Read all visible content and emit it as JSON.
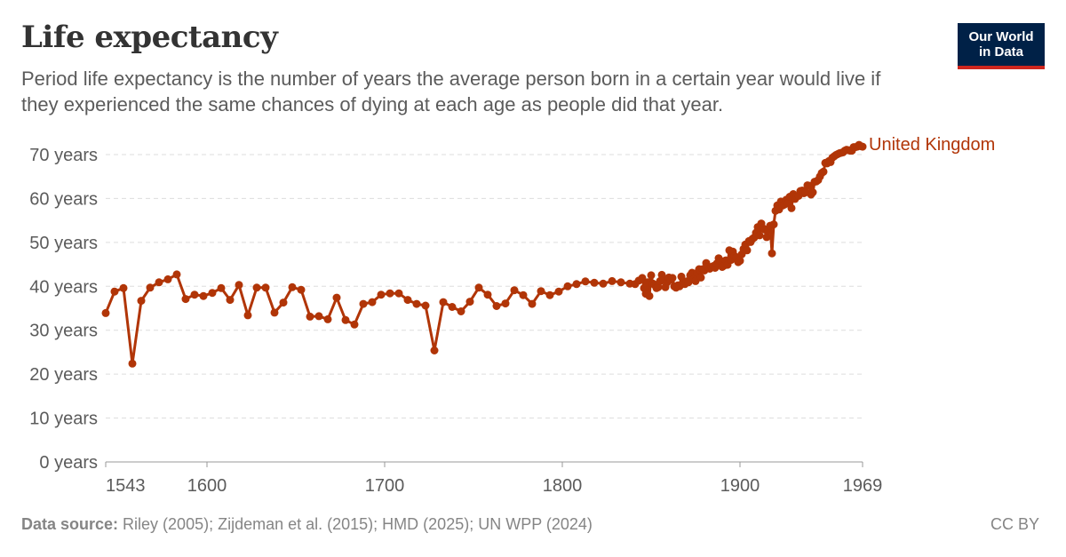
{
  "header": {
    "title": "Life expectancy",
    "subtitle": "Period life expectancy is the number of years the average person born in a certain year would live if they experienced the same chances of dying at each age as people did that year.",
    "logo_line1": "Our World",
    "logo_line2": "in Data"
  },
  "footer": {
    "source_label": "Data source:",
    "source_text": " Riley (2005); Zijdeman et al. (2015); HMD (2025); UN WPP (2024)",
    "license": "CC BY"
  },
  "colors": {
    "series": "#b13507",
    "grid": "#dddddd",
    "text": "#5b5b5b"
  },
  "chart_data": {
    "type": "line",
    "title": "Life expectancy",
    "xlim": [
      1543,
      1969
    ],
    "ylim": [
      0,
      70
    ],
    "yticks": [
      0,
      10,
      20,
      30,
      40,
      50,
      60,
      70
    ],
    "ytick_labels": [
      "0 years",
      "10 years",
      "20 years",
      "30 years",
      "40 years",
      "50 years",
      "60 years",
      "70 years"
    ],
    "xticks": [
      1543,
      1600,
      1700,
      1800,
      1900,
      1969
    ],
    "xtick_labels": [
      "1543",
      "1600",
      "1700",
      "1800",
      "1900",
      "1969"
    ],
    "grid": "horizontal dashed",
    "series": [
      {
        "name": "United Kingdom",
        "color": "#b13507",
        "points": [
          [
            1543,
            33.9
          ],
          [
            1548,
            38.8
          ],
          [
            1553,
            39.6
          ],
          [
            1558,
            22.4
          ],
          [
            1563,
            36.7
          ],
          [
            1568,
            39.7
          ],
          [
            1573,
            40.9
          ],
          [
            1578,
            41.6
          ],
          [
            1583,
            42.7
          ],
          [
            1588,
            37.1
          ],
          [
            1593,
            38.1
          ],
          [
            1598,
            37.8
          ],
          [
            1603,
            38.5
          ],
          [
            1608,
            39.6
          ],
          [
            1613,
            36.9
          ],
          [
            1618,
            40.3
          ],
          [
            1623,
            33.4
          ],
          [
            1628,
            39.7
          ],
          [
            1633,
            39.7
          ],
          [
            1638,
            34.0
          ],
          [
            1643,
            36.3
          ],
          [
            1648,
            39.8
          ],
          [
            1653,
            39.2
          ],
          [
            1658,
            33.1
          ],
          [
            1663,
            33.2
          ],
          [
            1668,
            32.5
          ],
          [
            1673,
            37.4
          ],
          [
            1678,
            32.3
          ],
          [
            1683,
            31.3
          ],
          [
            1688,
            36.0
          ],
          [
            1693,
            36.4
          ],
          [
            1698,
            38.1
          ],
          [
            1703,
            38.4
          ],
          [
            1708,
            38.4
          ],
          [
            1713,
            36.9
          ],
          [
            1718,
            36.0
          ],
          [
            1723,
            35.6
          ],
          [
            1728,
            25.4
          ],
          [
            1733,
            36.4
          ],
          [
            1738,
            35.3
          ],
          [
            1743,
            34.3
          ],
          [
            1748,
            36.5
          ],
          [
            1753,
            39.7
          ],
          [
            1758,
            38.1
          ],
          [
            1763,
            35.5
          ],
          [
            1768,
            36.1
          ],
          [
            1773,
            39.1
          ],
          [
            1778,
            38.0
          ],
          [
            1783,
            36.0
          ],
          [
            1788,
            38.9
          ],
          [
            1793,
            38.0
          ],
          [
            1798,
            38.8
          ],
          [
            1803,
            40.0
          ],
          [
            1808,
            40.5
          ],
          [
            1813,
            41.1
          ],
          [
            1818,
            40.8
          ],
          [
            1823,
            40.6
          ],
          [
            1828,
            41.2
          ],
          [
            1833,
            40.9
          ],
          [
            1838,
            40.6
          ],
          [
            1841,
            40.5
          ],
          [
            1843,
            41.3
          ],
          [
            1845,
            41.9
          ],
          [
            1846,
            39.6
          ],
          [
            1847,
            38.3
          ],
          [
            1848,
            40.9
          ],
          [
            1849,
            37.8
          ],
          [
            1850,
            42.5
          ],
          [
            1851,
            40.6
          ],
          [
            1852,
            40.3
          ],
          [
            1853,
            39.6
          ],
          [
            1854,
            39.8
          ],
          [
            1855,
            41.2
          ],
          [
            1856,
            42.6
          ],
          [
            1857,
            41.4
          ],
          [
            1858,
            39.8
          ],
          [
            1859,
            40.9
          ],
          [
            1860,
            42.0
          ],
          [
            1861,
            41.5
          ],
          [
            1862,
            41.9
          ],
          [
            1863,
            40.0
          ],
          [
            1864,
            39.7
          ],
          [
            1865,
            40.2
          ],
          [
            1866,
            40.0
          ],
          [
            1867,
            42.2
          ],
          [
            1868,
            41.0
          ],
          [
            1869,
            40.5
          ],
          [
            1870,
            41.1
          ],
          [
            1871,
            40.9
          ],
          [
            1872,
            42.5
          ],
          [
            1873,
            43.1
          ],
          [
            1874,
            41.6
          ],
          [
            1875,
            41.2
          ],
          [
            1876,
            43.1
          ],
          [
            1877,
            43.9
          ],
          [
            1878,
            42.0
          ],
          [
            1879,
            43.9
          ],
          [
            1880,
            43.6
          ],
          [
            1881,
            45.3
          ],
          [
            1882,
            44.4
          ],
          [
            1883,
            44.0
          ],
          [
            1884,
            44.4
          ],
          [
            1885,
            44.6
          ],
          [
            1886,
            44.2
          ],
          [
            1887,
            45.2
          ],
          [
            1888,
            46.4
          ],
          [
            1889,
            45.8
          ],
          [
            1890,
            44.4
          ],
          [
            1891,
            44.7
          ],
          [
            1892,
            45.9
          ],
          [
            1893,
            44.9
          ],
          [
            1894,
            48.2
          ],
          [
            1895,
            46.0
          ],
          [
            1896,
            47.9
          ],
          [
            1897,
            46.9
          ],
          [
            1898,
            46.6
          ],
          [
            1899,
            45.5
          ],
          [
            1900,
            45.8
          ],
          [
            1901,
            47.3
          ],
          [
            1902,
            48.5
          ],
          [
            1903,
            49.5
          ],
          [
            1904,
            48.2
          ],
          [
            1905,
            50.3
          ],
          [
            1906,
            50.1
          ],
          [
            1907,
            50.8
          ],
          [
            1908,
            51.1
          ],
          [
            1909,
            52.2
          ],
          [
            1910,
            53.5
          ],
          [
            1911,
            51.6
          ],
          [
            1912,
            54.3
          ],
          [
            1913,
            53.2
          ],
          [
            1914,
            52.9
          ],
          [
            1915,
            51.2
          ],
          [
            1916,
            52.7
          ],
          [
            1917,
            53.8
          ],
          [
            1918,
            47.5
          ],
          [
            1919,
            54.1
          ],
          [
            1920,
            57.2
          ],
          [
            1921,
            58.4
          ],
          [
            1922,
            57.5
          ],
          [
            1923,
            59.3
          ],
          [
            1924,
            58.4
          ],
          [
            1925,
            58.6
          ],
          [
            1926,
            59.7
          ],
          [
            1927,
            58.9
          ],
          [
            1928,
            60.4
          ],
          [
            1929,
            57.8
          ],
          [
            1930,
            61.0
          ],
          [
            1931,
            59.9
          ],
          [
            1932,
            60.5
          ],
          [
            1933,
            60.6
          ],
          [
            1934,
            61.7
          ],
          [
            1935,
            61.8
          ],
          [
            1936,
            61.2
          ],
          [
            1937,
            61.4
          ],
          [
            1938,
            63.0
          ],
          [
            1939,
            62.9
          ],
          [
            1940,
            60.9
          ],
          [
            1941,
            61.4
          ],
          [
            1942,
            63.8
          ],
          [
            1943,
            63.9
          ],
          [
            1944,
            64.2
          ],
          [
            1945,
            65.0
          ],
          [
            1946,
            65.8
          ],
          [
            1947,
            66.1
          ],
          [
            1948,
            68.1
          ],
          [
            1949,
            68.0
          ],
          [
            1950,
            68.5
          ],
          [
            1951,
            68.3
          ],
          [
            1952,
            69.3
          ],
          [
            1953,
            69.6
          ],
          [
            1954,
            69.9
          ],
          [
            1955,
            70.1
          ],
          [
            1956,
            70.3
          ],
          [
            1957,
            70.4
          ],
          [
            1958,
            70.5
          ],
          [
            1959,
            70.9
          ],
          [
            1960,
            71.1
          ],
          [
            1961,
            71.0
          ],
          [
            1962,
            70.9
          ],
          [
            1963,
            70.9
          ],
          [
            1964,
            71.7
          ],
          [
            1965,
            71.7
          ],
          [
            1966,
            71.8
          ],
          [
            1967,
            72.2
          ],
          [
            1968,
            71.9
          ],
          [
            1969,
            71.8
          ]
        ]
      }
    ]
  }
}
